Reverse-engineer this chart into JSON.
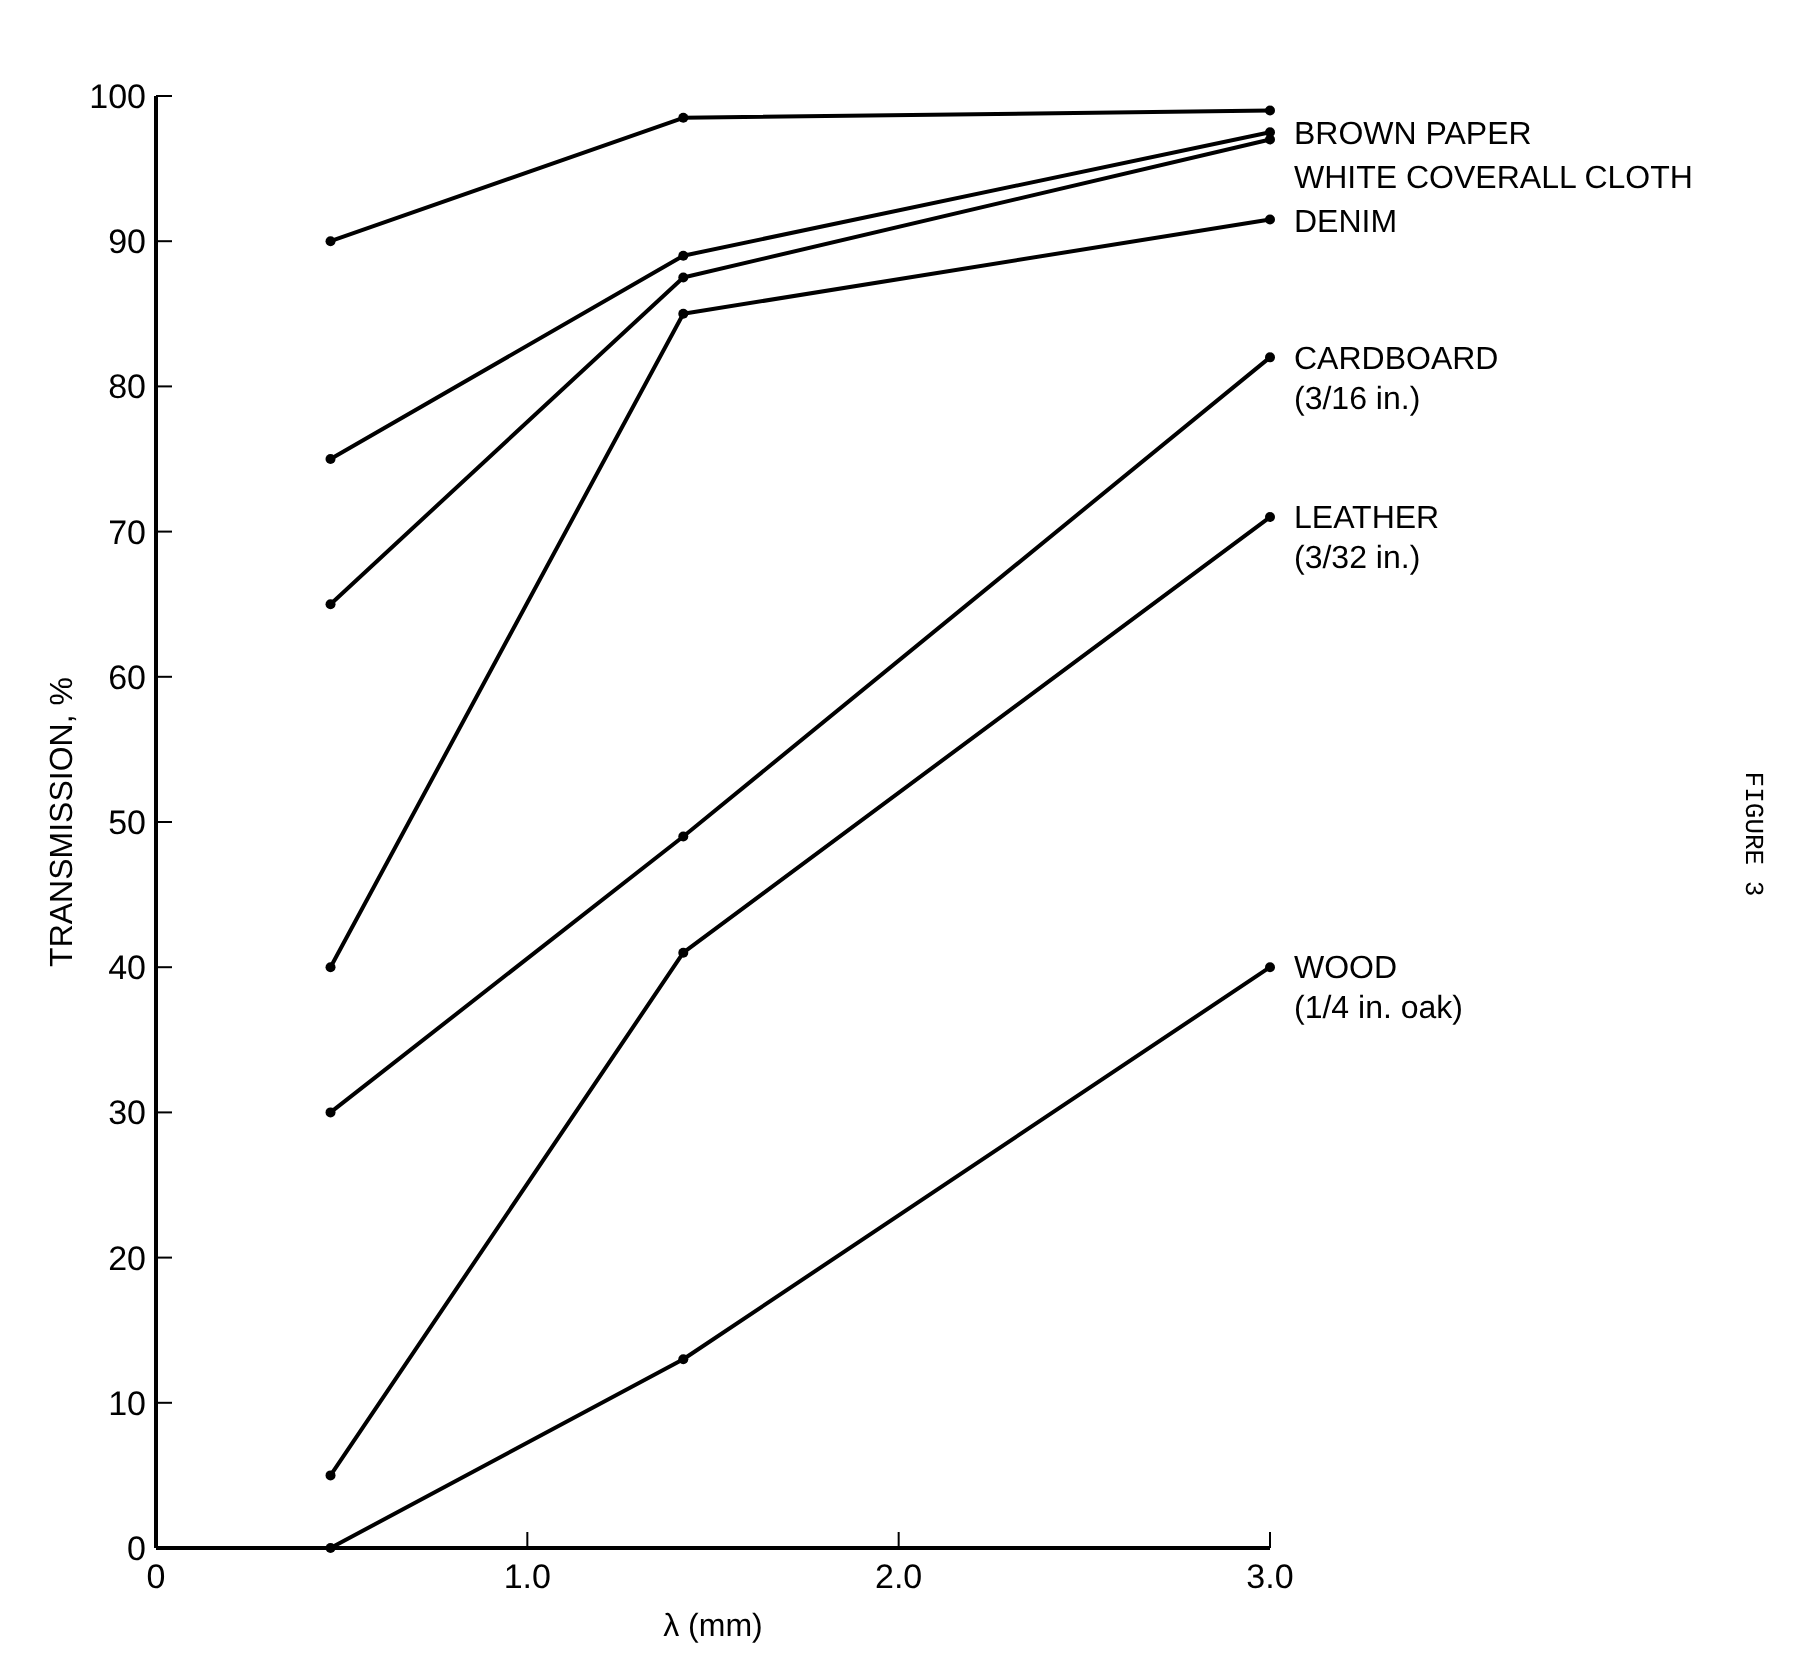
{
  "chart_data": {
    "type": "line",
    "xlabel": "λ (mm)",
    "ylabel": "TRANSMISSION, %",
    "x": [
      0.47,
      1.42,
      3.0
    ],
    "xlim": [
      0,
      3.0
    ],
    "ylim": [
      0,
      100
    ],
    "xticks": [
      0,
      {
        "value": 1,
        "label": "1.0"
      },
      {
        "value": 2,
        "label": "2.0"
      },
      {
        "value": 3,
        "label": "3.0"
      }
    ],
    "yticks": [
      0,
      10,
      20,
      30,
      40,
      50,
      60,
      70,
      80,
      90,
      100
    ],
    "grid": false,
    "marker": "circle",
    "line_style": "solid",
    "series": [
      {
        "color": "#000000",
        "values": [
          90,
          98.5,
          99
        ]
      },
      {
        "name": "BROWN PAPER",
        "color": "#000000",
        "values": [
          75,
          89,
          97.5
        ]
      },
      {
        "name": "WHITE COVERALL CLOTH",
        "color": "#000000",
        "values": [
          65,
          87.5,
          97
        ]
      },
      {
        "name": "DENIM",
        "color": "#000000",
        "values": [
          40,
          85,
          91.5
        ]
      },
      {
        "name": "CARDBOARD (3/16 in.)",
        "color": "#000000",
        "values": [
          30,
          49,
          82
        ]
      },
      {
        "name": "LEATHER (3/32 in.)",
        "color": "#000000",
        "values": [
          5,
          41,
          71
        ]
      },
      {
        "name": "WOOD (1/4 in. oak)",
        "color": "#000000",
        "values": [
          0,
          13,
          40
        ]
      }
    ],
    "annotations": [
      "FIGURE 3"
    ]
  }
}
